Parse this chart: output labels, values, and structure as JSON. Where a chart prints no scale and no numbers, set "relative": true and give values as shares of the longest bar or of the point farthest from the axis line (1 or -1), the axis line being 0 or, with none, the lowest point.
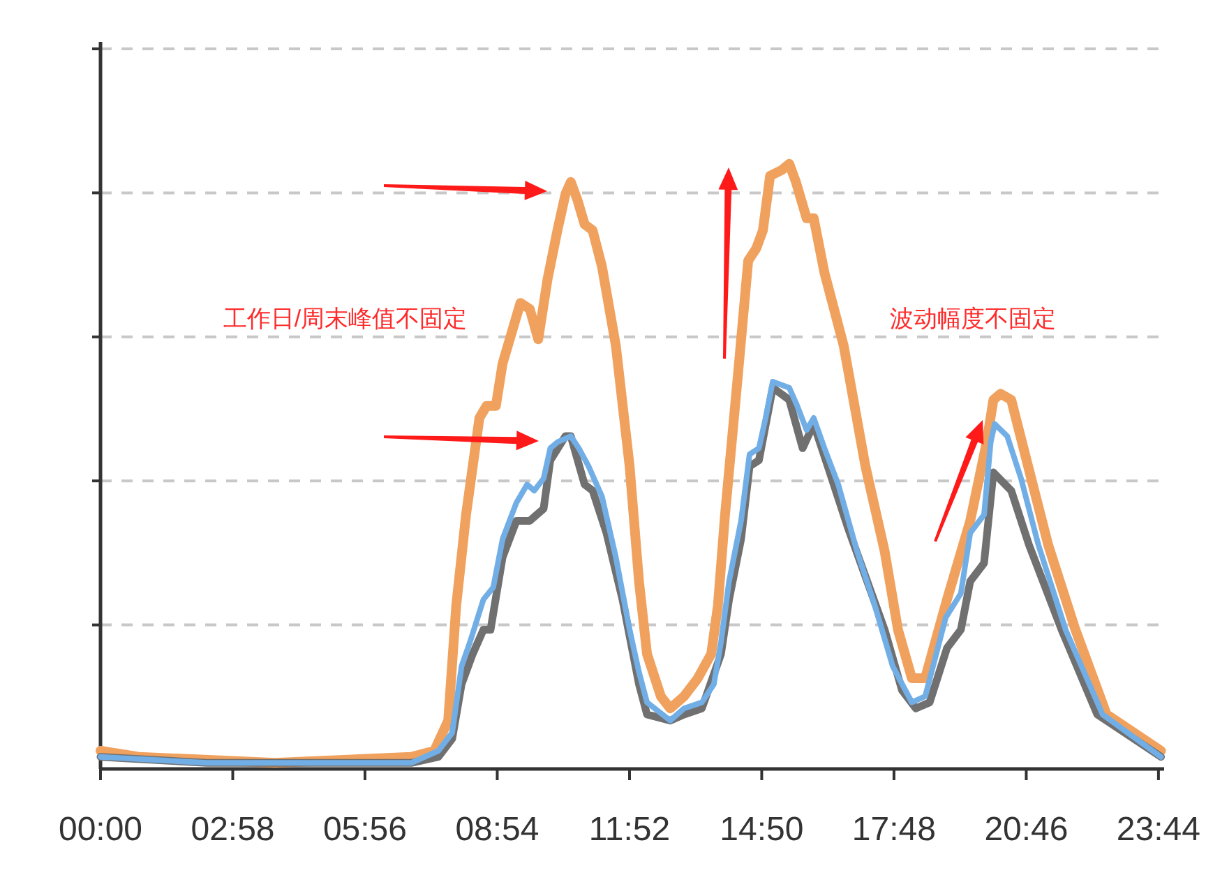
{
  "chart_data": {
    "type": "line",
    "relative": true,
    "grid": "y",
    "xlim": [
      0,
      23.86
    ],
    "xticks": [
      {
        "value": 0,
        "label": "00:00"
      },
      {
        "value": 2.967,
        "label": "02:58"
      },
      {
        "value": 5.933,
        "label": "05:56"
      },
      {
        "value": 8.9,
        "label": "08:54"
      },
      {
        "value": 11.867,
        "label": "11:52"
      },
      {
        "value": 14.833,
        "label": "14:50"
      },
      {
        "value": 17.8,
        "label": "17:48"
      },
      {
        "value": 20.767,
        "label": "20:46"
      },
      {
        "value": 23.733,
        "label": "23:44"
      }
    ],
    "annotations": [
      "工作日/周末峰值不固定",
      "波动幅度不固定"
    ],
    "series": [
      {
        "color": "#f0a15e",
        "x": [
          0,
          0.86,
          3.91,
          6.97,
          7.49,
          7.8,
          7.98,
          8.2,
          8.5,
          8.66,
          8.87,
          9.02,
          9.42,
          9.63,
          9.82,
          10.03,
          10.25,
          10.43,
          10.55,
          10.7,
          10.86,
          11.04,
          11.25,
          11.56,
          11.87,
          12.08,
          12.26,
          12.57,
          12.78,
          13.09,
          13.4,
          13.7,
          13.85,
          14.01,
          14.31,
          14.53,
          14.71,
          14.86,
          15.02,
          15.29,
          15.45,
          15.6,
          15.84,
          16.0,
          16.24,
          16.67,
          17.16,
          17.59,
          17.89,
          18.2,
          18.5,
          18.99,
          19.51,
          19.88,
          20.03,
          20.19,
          20.43,
          20.74,
          21.26,
          21.87,
          22.57,
          23.79
        ],
        "values": [
          0.03,
          0.02,
          0.01,
          0.02,
          0.03,
          0.08,
          0.27,
          0.42,
          0.58,
          0.6,
          0.6,
          0.67,
          0.77,
          0.76,
          0.71,
          0.81,
          0.89,
          0.95,
          0.97,
          0.94,
          0.9,
          0.89,
          0.83,
          0.7,
          0.5,
          0.31,
          0.19,
          0.12,
          0.1,
          0.12,
          0.15,
          0.19,
          0.27,
          0.42,
          0.66,
          0.84,
          0.86,
          0.89,
          0.98,
          0.99,
          1.0,
          0.97,
          0.91,
          0.91,
          0.82,
          0.7,
          0.5,
          0.36,
          0.23,
          0.15,
          0.15,
          0.28,
          0.41,
          0.54,
          0.61,
          0.62,
          0.61,
          0.52,
          0.37,
          0.23,
          0.09,
          0.03
        ]
      },
      {
        "color": "#707070",
        "x": [
          0,
          2.39,
          6.97,
          7.58,
          7.89,
          8.1,
          8.35,
          8.59,
          8.75,
          9.02,
          9.33,
          9.63,
          9.94,
          10.09,
          10.43,
          10.55,
          10.86,
          11.04,
          11.35,
          11.71,
          12.08,
          12.26,
          12.78,
          13.09,
          13.49,
          13.92,
          14.1,
          14.37,
          14.56,
          14.77,
          15.08,
          15.45,
          15.75,
          16.0,
          16.36,
          16.76,
          17.59,
          17.98,
          18.29,
          18.6,
          18.99,
          19.3,
          19.51,
          19.82,
          20.03,
          20.43,
          20.83,
          21.56,
          22.36,
          23.79
        ],
        "values": [
          0.02,
          0.01,
          0.01,
          0.02,
          0.05,
          0.14,
          0.19,
          0.23,
          0.23,
          0.35,
          0.41,
          0.41,
          0.43,
          0.51,
          0.55,
          0.55,
          0.47,
          0.46,
          0.39,
          0.28,
          0.14,
          0.09,
          0.08,
          0.09,
          0.1,
          0.19,
          0.28,
          0.38,
          0.5,
          0.51,
          0.63,
          0.61,
          0.53,
          0.57,
          0.49,
          0.4,
          0.23,
          0.13,
          0.1,
          0.11,
          0.2,
          0.23,
          0.31,
          0.34,
          0.49,
          0.46,
          0.37,
          0.23,
          0.09,
          0.02
        ]
      },
      {
        "color": "#72aee6",
        "x": [
          0,
          2.39,
          6.97,
          7.58,
          7.89,
          8.1,
          8.29,
          8.59,
          8.81,
          9.02,
          9.33,
          9.57,
          9.73,
          9.94,
          10.09,
          10.25,
          10.55,
          10.73,
          10.95,
          11.25,
          11.56,
          11.87,
          12.08,
          12.26,
          12.78,
          13.09,
          13.49,
          13.76,
          13.92,
          14.1,
          14.37,
          14.56,
          14.77,
          14.92,
          15.08,
          15.45,
          15.63,
          15.84,
          16.0,
          16.24,
          16.55,
          16.97,
          17.37,
          17.77,
          18.2,
          18.5,
          18.96,
          19.3,
          19.51,
          19.82,
          19.97,
          20.06,
          20.34,
          20.65,
          21.04,
          21.65,
          22.48,
          23.79
        ],
        "values": [
          0.02,
          0.01,
          0.01,
          0.03,
          0.06,
          0.17,
          0.21,
          0.28,
          0.3,
          0.38,
          0.44,
          0.47,
          0.46,
          0.48,
          0.53,
          0.54,
          0.55,
          0.53,
          0.5,
          0.45,
          0.35,
          0.23,
          0.16,
          0.11,
          0.08,
          0.1,
          0.11,
          0.14,
          0.21,
          0.31,
          0.41,
          0.52,
          0.53,
          0.58,
          0.64,
          0.63,
          0.6,
          0.56,
          0.58,
          0.53,
          0.47,
          0.36,
          0.27,
          0.17,
          0.11,
          0.12,
          0.25,
          0.29,
          0.39,
          0.42,
          0.54,
          0.57,
          0.55,
          0.48,
          0.37,
          0.23,
          0.09,
          0.02
        ]
      }
    ]
  }
}
